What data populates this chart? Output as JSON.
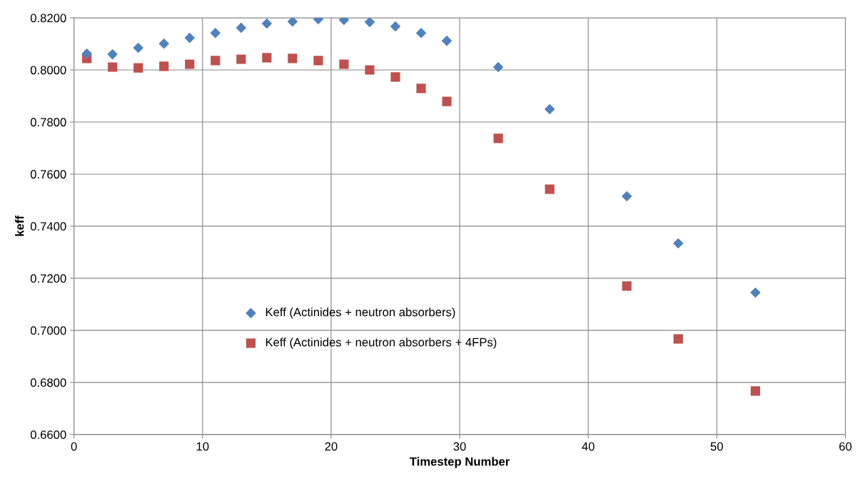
{
  "chart_data": {
    "type": "scatter",
    "xlabel": "Timestep Number",
    "ylabel": "keff",
    "x": [
      1,
      3,
      5,
      7,
      9,
      11,
      13,
      15,
      17,
      19,
      21,
      23,
      25,
      27,
      29,
      33,
      37,
      43,
      47,
      53
    ],
    "series": [
      {
        "name": "Keff (Actinides + neutron absorbers)",
        "color": "#4f81bd",
        "marker": "diamond",
        "values": [
          0.8063,
          0.806,
          0.8085,
          0.8101,
          0.8123,
          0.8142,
          0.8162,
          0.8178,
          0.8186,
          0.8195,
          0.8192,
          0.8184,
          0.8167,
          0.8142,
          0.8112,
          0.8011,
          0.7849,
          0.7515,
          0.7334,
          0.7145
        ]
      },
      {
        "name": "Keff (Actinides + neutron absorbers + 4FPs)",
        "color": "#c0504d",
        "marker": "square",
        "values": [
          0.8044,
          0.8011,
          0.8008,
          0.8014,
          0.8022,
          0.8036,
          0.8041,
          0.8047,
          0.8044,
          0.8036,
          0.8022,
          0.8,
          0.7973,
          0.7929,
          0.7879,
          0.7737,
          0.7542,
          0.717,
          0.6967,
          0.6767
        ]
      }
    ],
    "xlim": [
      0,
      60
    ],
    "xticks": [
      0,
      10,
      20,
      30,
      40,
      50,
      60
    ],
    "ylim": [
      0.66,
      0.82
    ],
    "yticks": [
      {
        "value": 0.66,
        "label": "0.6600"
      },
      {
        "value": 0.68,
        "label": "0.6800"
      },
      {
        "value": 0.7,
        "label": "0.7000"
      },
      {
        "value": 0.72,
        "label": "0.7200"
      },
      {
        "value": 0.74,
        "label": "0.7400"
      },
      {
        "value": 0.76,
        "label": "0.7600"
      },
      {
        "value": 0.78,
        "label": "0.7800"
      },
      {
        "value": 0.8,
        "label": "0.8000"
      },
      {
        "value": 0.82,
        "label": "0.8200"
      }
    ],
    "grid": true,
    "legend": "bottom left"
  }
}
